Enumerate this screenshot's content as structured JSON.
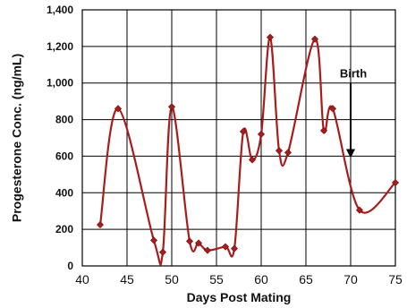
{
  "chart_data": {
    "type": "line",
    "title": "",
    "xlabel": "Days Post Mating",
    "ylabel": "Progesterone Conc. (ng/mL)",
    "xlim": [
      40,
      75
    ],
    "ylim": [
      0,
      1400
    ],
    "x_ticks": [
      40,
      45,
      50,
      55,
      60,
      65,
      70,
      75
    ],
    "y_ticks": [
      0,
      200,
      400,
      600,
      800,
      1000,
      1200,
      1400
    ],
    "x_tick_labels": [
      "40",
      "45",
      "50",
      "55",
      "60",
      "65",
      "70",
      "75"
    ],
    "y_tick_labels": [
      "0",
      "200",
      "400",
      "600",
      "800",
      "1,000",
      "1,200",
      "1,400"
    ],
    "grid": true,
    "series": [
      {
        "color": "#a81c1c",
        "marker": "diamond",
        "x": [
          42,
          44,
          48,
          49,
          50,
          52,
          53,
          54,
          56,
          57,
          58,
          59,
          60,
          61,
          62,
          63,
          66,
          67,
          68,
          71,
          75
        ],
        "y": [
          225,
          860,
          140,
          75,
          870,
          135,
          125,
          85,
          105,
          95,
          735,
          580,
          720,
          1250,
          630,
          620,
          1240,
          740,
          860,
          305,
          455
        ]
      }
    ],
    "annotations": [
      {
        "text": "Birth",
        "x": 70,
        "y_from": 1000,
        "y_to": 590
      }
    ]
  }
}
